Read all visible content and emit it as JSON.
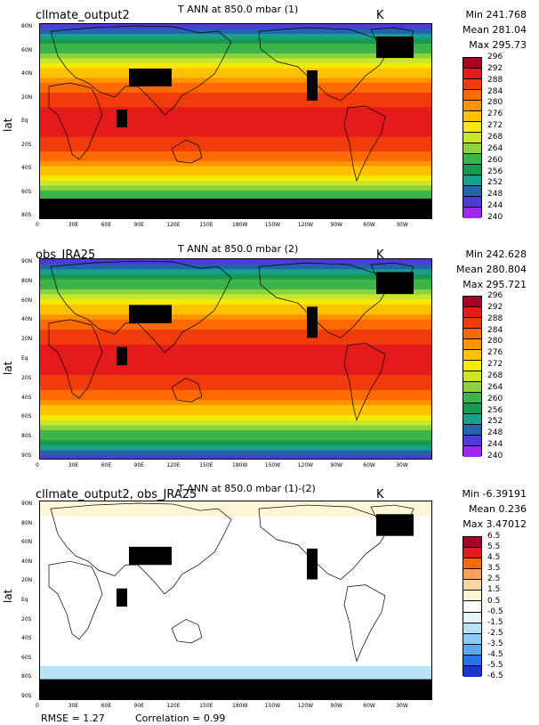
{
  "chart_data": [
    {
      "type": "heatmap",
      "case_title": "cllmate_output2",
      "title": "T ANN at 850.0 mbar (1)",
      "units": "K",
      "stats": {
        "min": "Min 241.768",
        "mean": "Mean 281.04",
        "max": "Max 295.73"
      },
      "ylabel": "lat",
      "yticks": [
        "80N",
        "60N",
        "40N",
        "20N",
        "Eq",
        "20S",
        "40S",
        "60S",
        "80S"
      ],
      "xticks": [
        "0",
        "30E",
        "60E",
        "90E",
        "120E",
        "150E",
        "180W",
        "150W",
        "120W",
        "90W",
        "60W",
        "30W"
      ],
      "colorbar": {
        "levels": [
          "296",
          "292",
          "288",
          "284",
          "280",
          "276",
          "272",
          "268",
          "264",
          "260",
          "256",
          "252",
          "248",
          "244",
          "240"
        ],
        "colors": [
          "#a50026",
          "#e41a1c",
          "#f03c0c",
          "#fd6a02",
          "#ff9400",
          "#ffc200",
          "#f5eb00",
          "#cbe62a",
          "#8ad23e",
          "#3cb44a",
          "#1b9850",
          "#1a9e8e",
          "#2166ac",
          "#4c3bd6",
          "#9d28f0"
        ]
      }
    },
    {
      "type": "heatmap",
      "case_title": "obs_JRA25",
      "title": "T ANN at 850.0 mbar (2)",
      "units": "K",
      "stats": {
        "min": "Min 242.628",
        "mean": "Mean 280.804",
        "max": "Max 295.721"
      },
      "ylabel": "lat",
      "yticks": [
        "90N",
        "80N",
        "60N",
        "40N",
        "20N",
        "Eq",
        "20S",
        "40S",
        "60S",
        "80S",
        "90S"
      ],
      "xticks": [
        "0",
        "30E",
        "60E",
        "90E",
        "120E",
        "150E",
        "180W",
        "150W",
        "120W",
        "90W",
        "60W",
        "30W"
      ],
      "colorbar": {
        "levels": [
          "296",
          "292",
          "288",
          "284",
          "280",
          "276",
          "272",
          "268",
          "264",
          "260",
          "256",
          "252",
          "248",
          "244",
          "240"
        ],
        "colors": [
          "#a50026",
          "#e41a1c",
          "#f03c0c",
          "#fd6a02",
          "#ff9400",
          "#ffc200",
          "#f5eb00",
          "#cbe62a",
          "#8ad23e",
          "#3cb44a",
          "#1b9850",
          "#1a9e8e",
          "#2166ac",
          "#4c3bd6",
          "#9d28f0"
        ]
      }
    },
    {
      "type": "heatmap",
      "case_title": "cllmate_output2, obs_JRA25",
      "title": "T ANN at 850.0 mbar (1)-(2)",
      "units": "K",
      "stats": {
        "min": "Min -6.39191",
        "mean": "Mean 0.236",
        "max": "Max 3.47012"
      },
      "ylabel": "lat",
      "yticks": [
        "90N",
        "80N",
        "60N",
        "40N",
        "20N",
        "Eq",
        "20S",
        "40S",
        "60S",
        "80S",
        "90S"
      ],
      "xticks": [
        "0",
        "30E",
        "60E",
        "90E",
        "120E",
        "150E",
        "180W",
        "150W",
        "120W",
        "90W",
        "60W",
        "30W"
      ],
      "colorbar": {
        "levels": [
          "6.5",
          "5.5",
          "4.5",
          "3.5",
          "2.5",
          "1.5",
          "0.5",
          "-0.5",
          "-1.5",
          "-2.5",
          "-3.5",
          "-4.5",
          "-5.5",
          "-6.5"
        ],
        "colors": [
          "#a50026",
          "#e41a1c",
          "#fd6a02",
          "#fca05a",
          "#fed8a0",
          "#fef6d6",
          "#ffffff",
          "#e4f4fb",
          "#b8e2f7",
          "#8ccbf5",
          "#5aa8f0",
          "#2c70e8",
          "#1a36d0"
        ]
      }
    }
  ],
  "footer": {
    "rmse": "RMSE = 1.27",
    "correlation": "Correlation = 0.99"
  }
}
